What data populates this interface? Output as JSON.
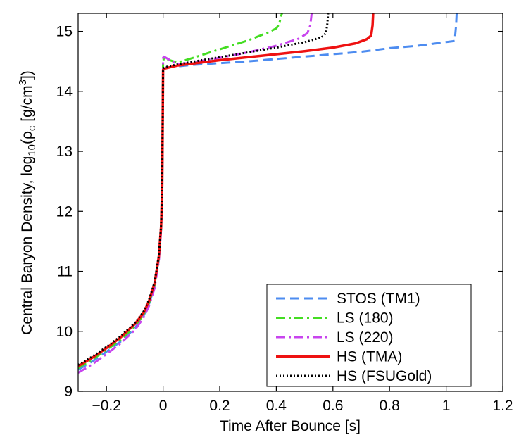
{
  "chart_data": {
    "type": "line",
    "xlabel": "Time After Bounce [s]",
    "ylabel": {
      "prefix": "Central Baryon Density, log",
      "sub1": "10",
      "mid1": "(ρ",
      "sub2": "c",
      "mid2": " [g/cm",
      "sup": "3",
      "suffix": "])"
    },
    "xlim": [
      -0.3,
      1.2
    ],
    "ylim": [
      9,
      15.3
    ],
    "xticks": [
      -0.2,
      0,
      0.2,
      0.4,
      0.6,
      0.8,
      1,
      1.2
    ],
    "xtick_labels": [
      "−0.2",
      "0",
      "0.2",
      "0.4",
      "0.6",
      "0.8",
      "1",
      "1.2"
    ],
    "yticks": [
      9,
      10,
      11,
      12,
      13,
      14,
      15
    ],
    "ytick_labels": [
      "9",
      "10",
      "11",
      "12",
      "13",
      "14",
      "15"
    ],
    "legend_position": "bottom-right",
    "series": [
      {
        "name": "STOS (TM1)",
        "color": "#4d8cf0",
        "style": "dashed",
        "x": [
          -0.3,
          -0.25,
          -0.2,
          -0.15,
          -0.1,
          -0.07,
          -0.05,
          -0.03,
          -0.015,
          -0.007,
          -0.003,
          0,
          0.003,
          0.02,
          0.1,
          0.3,
          0.5,
          0.7,
          0.8,
          0.9,
          1.03,
          1.035,
          1.037
        ],
        "y": [
          9.36,
          9.5,
          9.66,
          9.83,
          10.05,
          10.25,
          10.45,
          10.75,
          11.2,
          11.7,
          12.4,
          14.35,
          14.4,
          14.4,
          14.44,
          14.5,
          14.58,
          14.66,
          14.72,
          14.76,
          14.84,
          15.1,
          15.3
        ]
      },
      {
        "name": "LS (180)",
        "color": "#44dd22",
        "style": "dashdot",
        "x": [
          -0.3,
          -0.25,
          -0.2,
          -0.15,
          -0.1,
          -0.07,
          -0.05,
          -0.03,
          -0.015,
          -0.007,
          -0.003,
          0,
          0.003,
          0.05,
          0.1,
          0.2,
          0.3,
          0.37,
          0.4,
          0.41,
          0.415,
          0.42
        ],
        "y": [
          9.39,
          9.53,
          9.69,
          9.86,
          10.08,
          10.27,
          10.47,
          10.77,
          11.22,
          11.72,
          12.42,
          14.5,
          14.55,
          14.48,
          14.55,
          14.7,
          14.85,
          14.98,
          15.05,
          15.12,
          15.22,
          15.3
        ]
      },
      {
        "name": "LS (220)",
        "color": "#c844ee",
        "style": "dashdot",
        "x": [
          -0.3,
          -0.25,
          -0.2,
          -0.15,
          -0.1,
          -0.07,
          -0.05,
          -0.03,
          -0.015,
          -0.007,
          -0.003,
          0,
          0.003,
          0.05,
          0.1,
          0.2,
          0.3,
          0.4,
          0.48,
          0.51,
          0.52,
          0.525
        ],
        "y": [
          9.31,
          9.45,
          9.62,
          9.8,
          10.02,
          10.22,
          10.42,
          10.72,
          11.18,
          11.68,
          12.38,
          14.56,
          14.58,
          14.45,
          14.48,
          14.56,
          14.65,
          14.76,
          14.88,
          14.97,
          15.1,
          15.3
        ]
      },
      {
        "name": "HS (TMA)",
        "color": "#ee1111",
        "style": "solid",
        "x": [
          -0.3,
          -0.25,
          -0.2,
          -0.15,
          -0.1,
          -0.07,
          -0.05,
          -0.03,
          -0.015,
          -0.007,
          -0.003,
          0,
          0.005,
          0.05,
          0.1,
          0.2,
          0.3,
          0.4,
          0.5,
          0.6,
          0.68,
          0.72,
          0.735,
          0.74,
          0.742
        ],
        "y": [
          9.42,
          9.56,
          9.72,
          9.9,
          10.12,
          10.3,
          10.5,
          10.8,
          11.25,
          11.75,
          12.45,
          14.36,
          14.38,
          14.43,
          14.46,
          14.52,
          14.57,
          14.62,
          14.67,
          14.73,
          14.8,
          14.87,
          14.93,
          15.1,
          15.3
        ]
      },
      {
        "name": "HS (FSUGold)",
        "color": "#000000",
        "style": "dotted",
        "x": [
          -0.3,
          -0.25,
          -0.2,
          -0.15,
          -0.1,
          -0.07,
          -0.05,
          -0.03,
          -0.015,
          -0.007,
          -0.003,
          0,
          0.005,
          0.05,
          0.1,
          0.2,
          0.3,
          0.4,
          0.5,
          0.56,
          0.575,
          0.58,
          0.583
        ],
        "y": [
          9.44,
          9.58,
          9.74,
          9.92,
          10.14,
          10.32,
          10.52,
          10.82,
          11.27,
          11.77,
          12.47,
          14.38,
          14.4,
          14.45,
          14.49,
          14.57,
          14.65,
          14.73,
          14.82,
          14.9,
          14.97,
          15.12,
          15.3
        ]
      }
    ]
  }
}
